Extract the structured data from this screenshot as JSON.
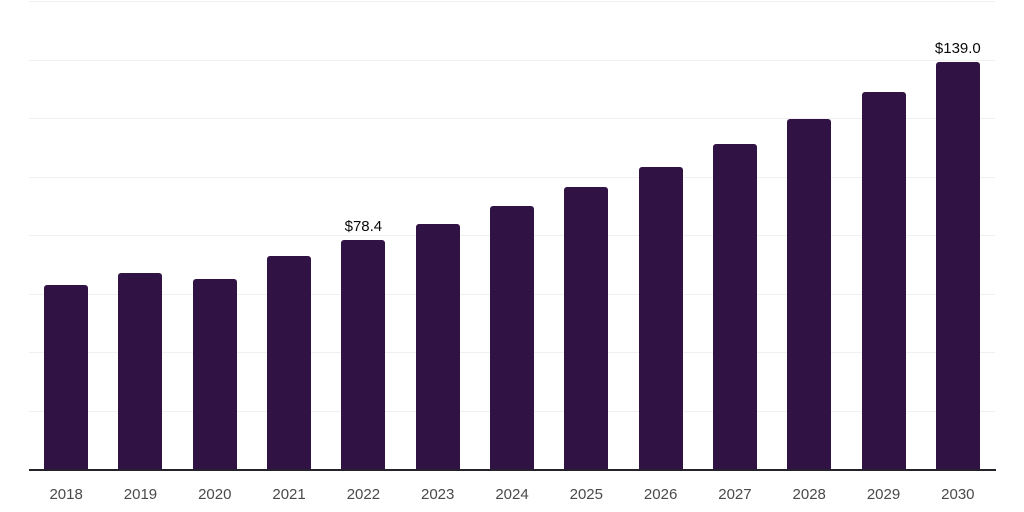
{
  "chart_data": {
    "type": "bar",
    "categories": [
      "2018",
      "2019",
      "2020",
      "2021",
      "2022",
      "2023",
      "2024",
      "2025",
      "2026",
      "2027",
      "2028",
      "2029",
      "2030"
    ],
    "values": [
      63.0,
      67.0,
      65.0,
      72.8,
      78.4,
      83.8,
      89.9,
      96.4,
      103.4,
      111.1,
      119.7,
      128.9,
      139.0
    ],
    "data_labels": [
      {
        "category": "2022",
        "text": "$78.4"
      },
      {
        "category": "2030",
        "text": "$139.0"
      }
    ],
    "ylim": [
      0,
      160
    ],
    "gridline_step": 20,
    "grid": true,
    "legend": false,
    "colors": {
      "bar": "#311245",
      "axis_line": "#26222b",
      "gridline": "#f0f0f1",
      "tick_label": "#4a4a4a",
      "data_label": "#0a0a0a",
      "background": "#ffffff"
    }
  }
}
